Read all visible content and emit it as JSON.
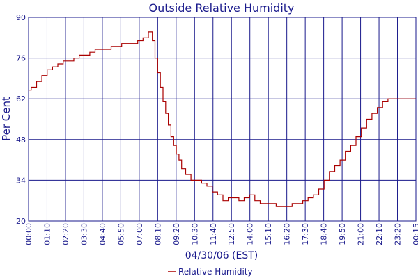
{
  "chart_data": {
    "type": "line",
    "title": "Outside Relative Humidity",
    "xlabel": "04/30/06 (EST)",
    "ylabel": "Per Cent",
    "ylim": [
      20,
      90
    ],
    "yticks": [
      20,
      34,
      48,
      62,
      76,
      90
    ],
    "x_ticks": [
      "00:00",
      "01:10",
      "02:20",
      "03:30",
      "04:40",
      "05:50",
      "07:00",
      "08:10",
      "09:20",
      "10:30",
      "11:40",
      "12:50",
      "14:00",
      "15:10",
      "16:20",
      "17:30",
      "18:40",
      "19:50",
      "21:00",
      "22:10",
      "23:20",
      "00:15"
    ],
    "grid": true,
    "legend_position": "bottom-center",
    "colors": {
      "series": "#aa0000",
      "grid": "#1a1a8c",
      "text": "#1a1a8c"
    },
    "series": [
      {
        "name": "Relative Humidity",
        "x_minutes": [
          0,
          20,
          40,
          60,
          80,
          100,
          120,
          140,
          160,
          180,
          200,
          220,
          240,
          260,
          280,
          300,
          320,
          340,
          360,
          380,
          400,
          420,
          440,
          460,
          470,
          480,
          490,
          500,
          510,
          520,
          530,
          540,
          550,
          560,
          570,
          580,
          600,
          620,
          640,
          660,
          680,
          700,
          720,
          740,
          760,
          780,
          800,
          820,
          840,
          860,
          880,
          900,
          920,
          940,
          960,
          980,
          1000,
          1020,
          1040,
          1060,
          1080,
          1100,
          1120,
          1140,
          1160,
          1180,
          1200,
          1220,
          1240,
          1260,
          1280,
          1300,
          1320,
          1340,
          1360,
          1380,
          1400,
          1420,
          1440,
          1455
        ],
        "values": [
          65,
          66,
          68,
          70,
          72,
          73,
          74,
          75,
          75,
          76,
          77,
          77,
          78,
          79,
          79,
          79,
          80,
          80,
          81,
          81,
          81,
          82,
          83,
          85,
          82,
          76,
          71,
          66,
          61,
          57,
          53,
          49,
          46,
          43,
          41,
          38,
          36,
          34,
          34,
          33,
          32,
          30,
          29,
          27,
          28,
          28,
          27,
          28,
          29,
          27,
          26,
          26,
          26,
          25,
          25,
          25,
          26,
          26,
          27,
          28,
          29,
          31,
          34,
          37,
          39,
          41,
          44,
          46,
          49,
          52,
          55,
          57,
          59,
          61,
          62,
          62,
          62,
          62,
          62,
          62
        ]
      }
    ]
  }
}
